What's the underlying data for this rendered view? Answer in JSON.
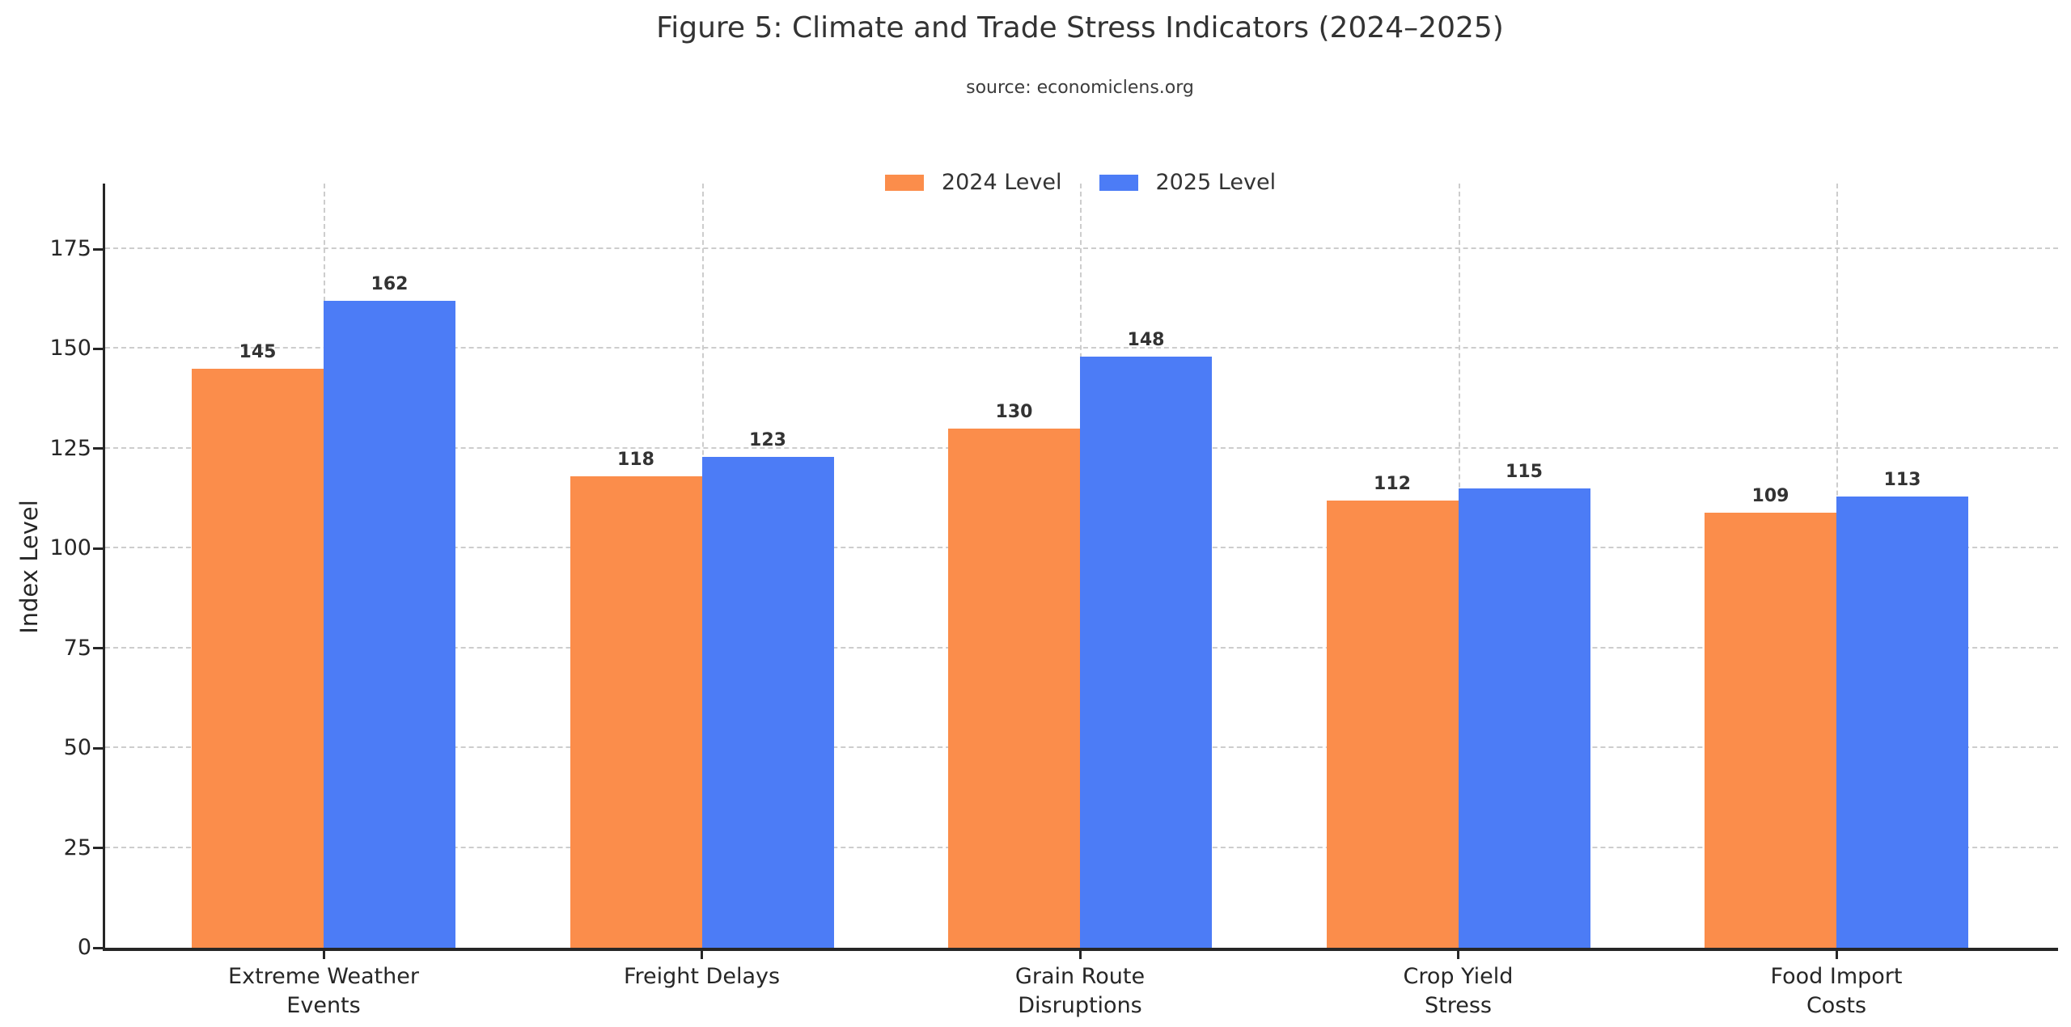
{
  "chart_data": {
    "type": "bar",
    "title": "Figure 5: Climate and Trade Stress Indicators (2024–2025)",
    "subtitle": "source: economiclens.org",
    "categories": [
      "Extreme Weather\nEvents",
      "Freight Delays",
      "Grain Route\nDisruptions",
      "Crop Yield\nStress",
      "Food Import\nCosts"
    ],
    "series": [
      {
        "name": "2024 Level",
        "color": "#fb8d4b",
        "values": [
          145,
          118,
          130,
          112,
          109
        ]
      },
      {
        "name": "2025 Level",
        "color": "#4c7cf6",
        "values": [
          162,
          123,
          148,
          115,
          113
        ]
      }
    ],
    "xlabel": "",
    "ylabel": "Index Level",
    "yticks": [
      0,
      25,
      50,
      75,
      100,
      125,
      150,
      175
    ],
    "ylim": [
      0,
      192
    ],
    "grid": {
      "horizontal": true,
      "vertical": true,
      "style": "dashed",
      "color": "#cdcdcd"
    },
    "legend": {
      "position": "top center",
      "frame": false
    },
    "value_labels_shown": true,
    "colors": {
      "background": "#ffffff",
      "axis": "#262626",
      "text": "#333333",
      "grid": "#cdcdcd"
    }
  }
}
